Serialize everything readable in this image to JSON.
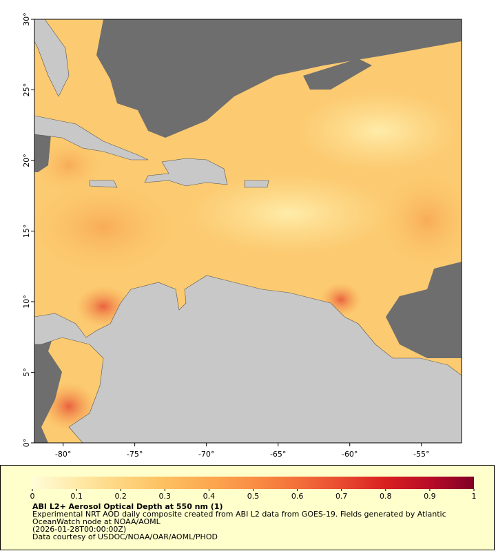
{
  "map": {
    "xlim": [
      -82,
      -52.2
    ],
    "ylim": [
      0,
      30
    ],
    "xticks": [
      {
        "value": -80,
        "label": "-80°"
      },
      {
        "value": -75,
        "label": "-75°"
      },
      {
        "value": -70,
        "label": "-70°"
      },
      {
        "value": -65,
        "label": "-65°"
      },
      {
        "value": -60,
        "label": "-60°"
      },
      {
        "value": -55,
        "label": "-55°"
      }
    ],
    "yticks": [
      {
        "value": 0,
        "label": "0°"
      },
      {
        "value": 5,
        "label": "5°"
      },
      {
        "value": 10,
        "label": "10°"
      },
      {
        "value": 15,
        "label": "15°"
      },
      {
        "value": 20,
        "label": "20°"
      },
      {
        "value": 25,
        "label": "25°"
      },
      {
        "value": 30,
        "label": "30°"
      }
    ]
  },
  "colorbar": {
    "range": [
      0,
      1
    ],
    "ticks": [
      0,
      0.1,
      0.2,
      0.3,
      0.4,
      0.5,
      0.6,
      0.7,
      0.8,
      0.9,
      1
    ],
    "colors": [
      "#fffcd8",
      "#ffeaa8",
      "#fed580",
      "#fdc060",
      "#fca850",
      "#f98e44",
      "#f3703a",
      "#e94a30",
      "#d82020",
      "#b80c28",
      "#800026"
    ]
  },
  "caption": {
    "title": "ABI L2+ Aerosol Optical Depth at 550 nm (1)",
    "description": "Experimental NRT AOD daily composite created from ABI L2 data from GOES-19. Fields generated by Atlantic OceanWatch node at NOAA/AOML",
    "time": "(2026-01-28T00:00:00Z)",
    "credit": "Data courtesy of USDOC/NOAA/OAR/AOML/PHOD"
  }
}
